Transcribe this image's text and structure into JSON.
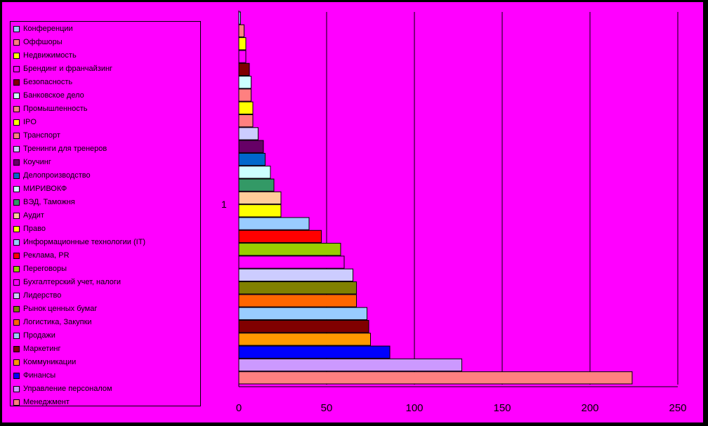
{
  "colors": {
    "background": "#ff00ff",
    "frame": "#000000",
    "gridline": "#000000"
  },
  "stray_mark": "1",
  "chart_data": {
    "type": "bar",
    "orientation": "horizontal",
    "title": "",
    "xlabel": "",
    "ylabel": "",
    "xlim": [
      0,
      250
    ],
    "x_ticks": [
      "0",
      "50",
      "100",
      "150",
      "200",
      "250"
    ],
    "grid": "vertical major gridlines",
    "legend_position": "left",
    "categories": [
      "Конференции",
      "Оффшоры",
      "Недвижимость",
      "Брендинг и франчайзинг",
      "Безопасность",
      "Банковское дело",
      "Промышленность",
      "IPO",
      "Транспорт",
      "Тренинги для тренеров",
      "Коучинг",
      "Делопроизводство",
      "МИРИВОКФ",
      "ВЭД, Таможня",
      "Аудит",
      "Право",
      "Информационные технологии (IT)",
      "Реклама, PR",
      "Переговоры",
      "Бухгалтерский учет, налоги",
      "Лидерство",
      "Рынок ценных бумаг",
      "Логистика, Закупки",
      "Продажи",
      "Маркетинг",
      "Коммуникации",
      "Финансы",
      "Управление персоналом",
      "Менеджмент"
    ],
    "values": [
      1,
      3,
      4,
      4,
      6,
      7,
      7,
      8,
      8,
      11,
      14,
      15,
      18,
      20,
      24,
      24,
      40,
      47,
      58,
      60,
      65,
      67,
      67,
      73,
      74,
      75,
      86,
      127,
      224
    ],
    "colors": [
      "#99ccff",
      "#ff8080",
      "#ffff00",
      "#ff00ff",
      "#800000",
      "#ccffff",
      "#ff8080",
      "#ffff00",
      "#ff8080",
      "#ccccff",
      "#660066",
      "#0066cc",
      "#ccffff",
      "#339966",
      "#ffcc99",
      "#ffff00",
      "#99ccff",
      "#ff0000",
      "#99cc00",
      "#ff00ff",
      "#ccccff",
      "#808000",
      "#ff6600",
      "#99ccff",
      "#800000",
      "#ff9900",
      "#0000ff",
      "#cc99ff",
      "#ff8080"
    ]
  }
}
